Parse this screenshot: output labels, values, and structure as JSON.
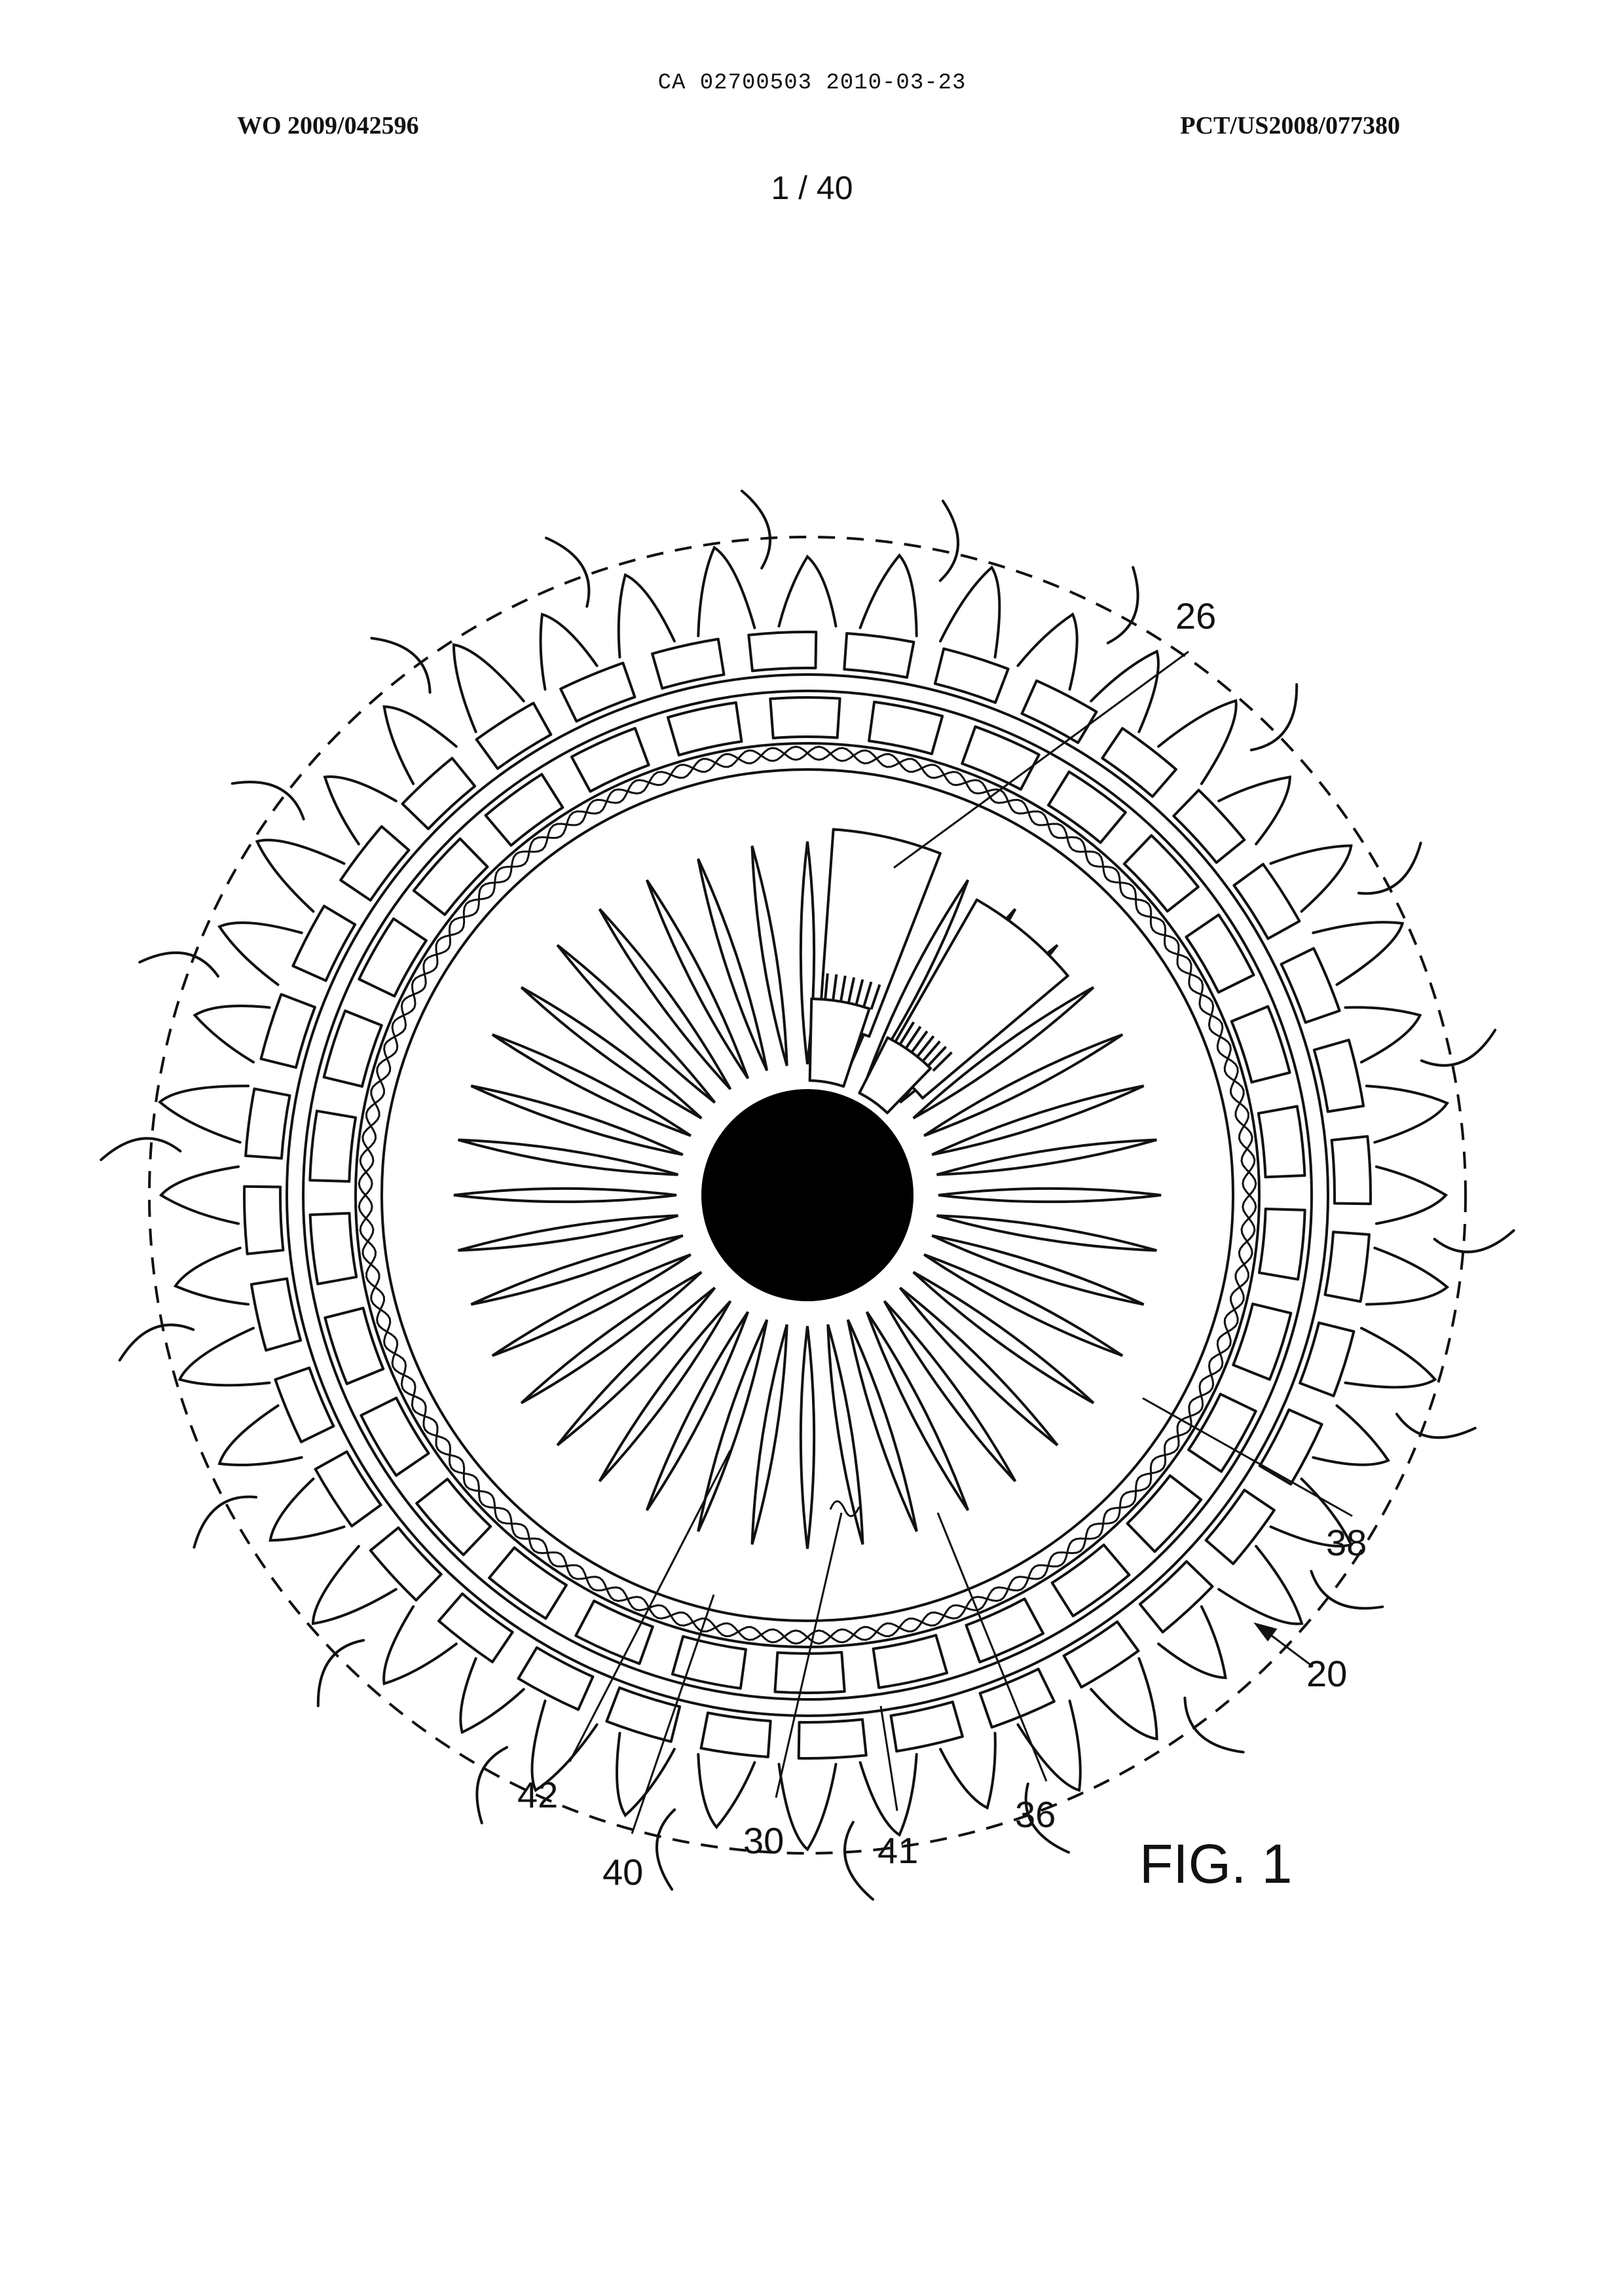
{
  "header": {
    "ca_number": "CA 02700503 2010-03-23",
    "wo_number": "WO 2009/042596",
    "pct_number": "PCT/US2008/077380",
    "sheet": "1 / 40"
  },
  "figure": {
    "label": "FIG. 1",
    "refs": {
      "r26": "26",
      "r38": "38",
      "r20": "20",
      "r42": "42",
      "r40": "40",
      "r30": "30",
      "r41": "41",
      "r36": "36"
    }
  },
  "colors": {
    "ink": "#111111",
    "paper": "#ffffff"
  }
}
